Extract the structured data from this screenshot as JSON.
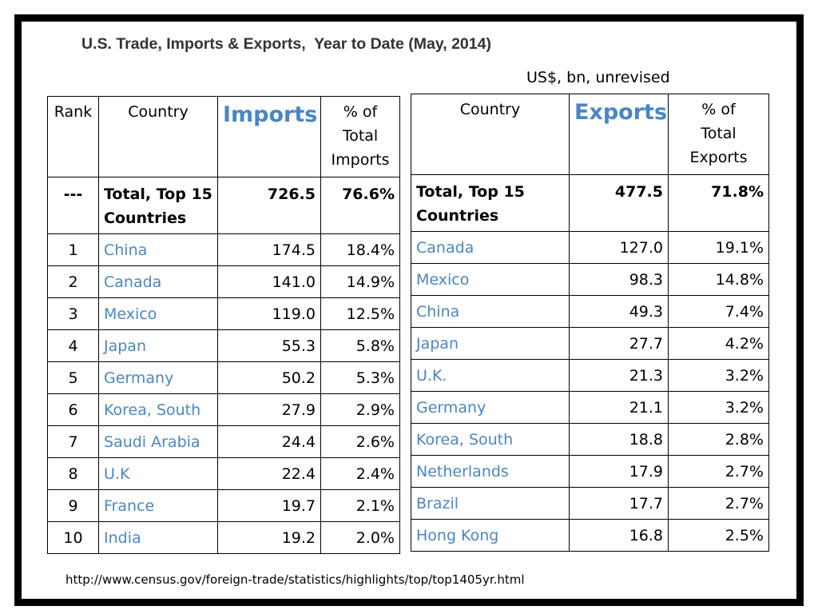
{
  "title": "U.S. Trade, Imports & Exports,  Year to Date (May, 2014)",
  "subtitle": "US$, bn, unrevised",
  "source": "http://www.census.gov/foreign-trade/statistics/highlights/top/top1405yr.html",
  "imports": {
    "headers": {
      "rank": "Rank",
      "country": "Country",
      "value": "Imports",
      "pct_line1": "% of",
      "pct_line2": "Total",
      "pct_line3": "Imports"
    },
    "total": {
      "rank": "---",
      "country_line1": "Total, Top 15",
      "country_line2": "Countries",
      "value": "726.5",
      "pct": "76.6%"
    },
    "rows": [
      {
        "rank": "1",
        "country": "China",
        "value": "174.5",
        "pct": "18.4%"
      },
      {
        "rank": "2",
        "country": "Canada",
        "value": "141.0",
        "pct": "14.9%"
      },
      {
        "rank": "3",
        "country": "Mexico",
        "value": "119.0",
        "pct": "12.5%"
      },
      {
        "rank": "4",
        "country": "Japan",
        "value": "55.3",
        "pct": "5.8%"
      },
      {
        "rank": "5",
        "country": "Germany",
        "value": "50.2",
        "pct": "5.3%"
      },
      {
        "rank": "6",
        "country": "Korea, South",
        "value": "27.9",
        "pct": "2.9%"
      },
      {
        "rank": "7",
        "country": "Saudi Arabia",
        "value": "24.4",
        "pct": "2.6%"
      },
      {
        "rank": "8",
        "country": "U.K",
        "value": "22.4",
        "pct": "2.4%"
      },
      {
        "rank": "9",
        "country": "France",
        "value": "19.7",
        "pct": "2.1%"
      },
      {
        "rank": "10",
        "country": "India",
        "value": "19.2",
        "pct": "2.0%"
      }
    ]
  },
  "exports": {
    "headers": {
      "country": "Country",
      "value": "Exports",
      "pct_line1": "% of",
      "pct_line2": "Total",
      "pct_line3": "Exports"
    },
    "total": {
      "country_line1": "Total, Top 15",
      "country_line2": "Countries",
      "value": "477.5",
      "pct": "71.8%"
    },
    "rows": [
      {
        "country": "Canada",
        "value": "127.0",
        "pct": "19.1%"
      },
      {
        "country": "Mexico",
        "value": "98.3",
        "pct": "14.8%"
      },
      {
        "country": "China",
        "value": "49.3",
        "pct": "7.4%"
      },
      {
        "country": "Japan",
        "value": "27.7",
        "pct": "4.2%"
      },
      {
        "country": "U.K.",
        "value": "21.3",
        "pct": "3.2%"
      },
      {
        "country": "Germany",
        "value": "21.1",
        "pct": "3.2%"
      },
      {
        "country": "Korea, South",
        "value": "18.8",
        "pct": "2.8%"
      },
      {
        "country": "Netherlands",
        "value": "17.9",
        "pct": "2.7%"
      },
      {
        "country": "Brazil",
        "value": "17.7",
        "pct": "2.7%"
      },
      {
        "country": "Hong Kong",
        "value": "16.8",
        "pct": "2.5%"
      }
    ]
  },
  "colors": {
    "country_link": "#4a86c5",
    "title": "#333333",
    "border": "#000000"
  }
}
